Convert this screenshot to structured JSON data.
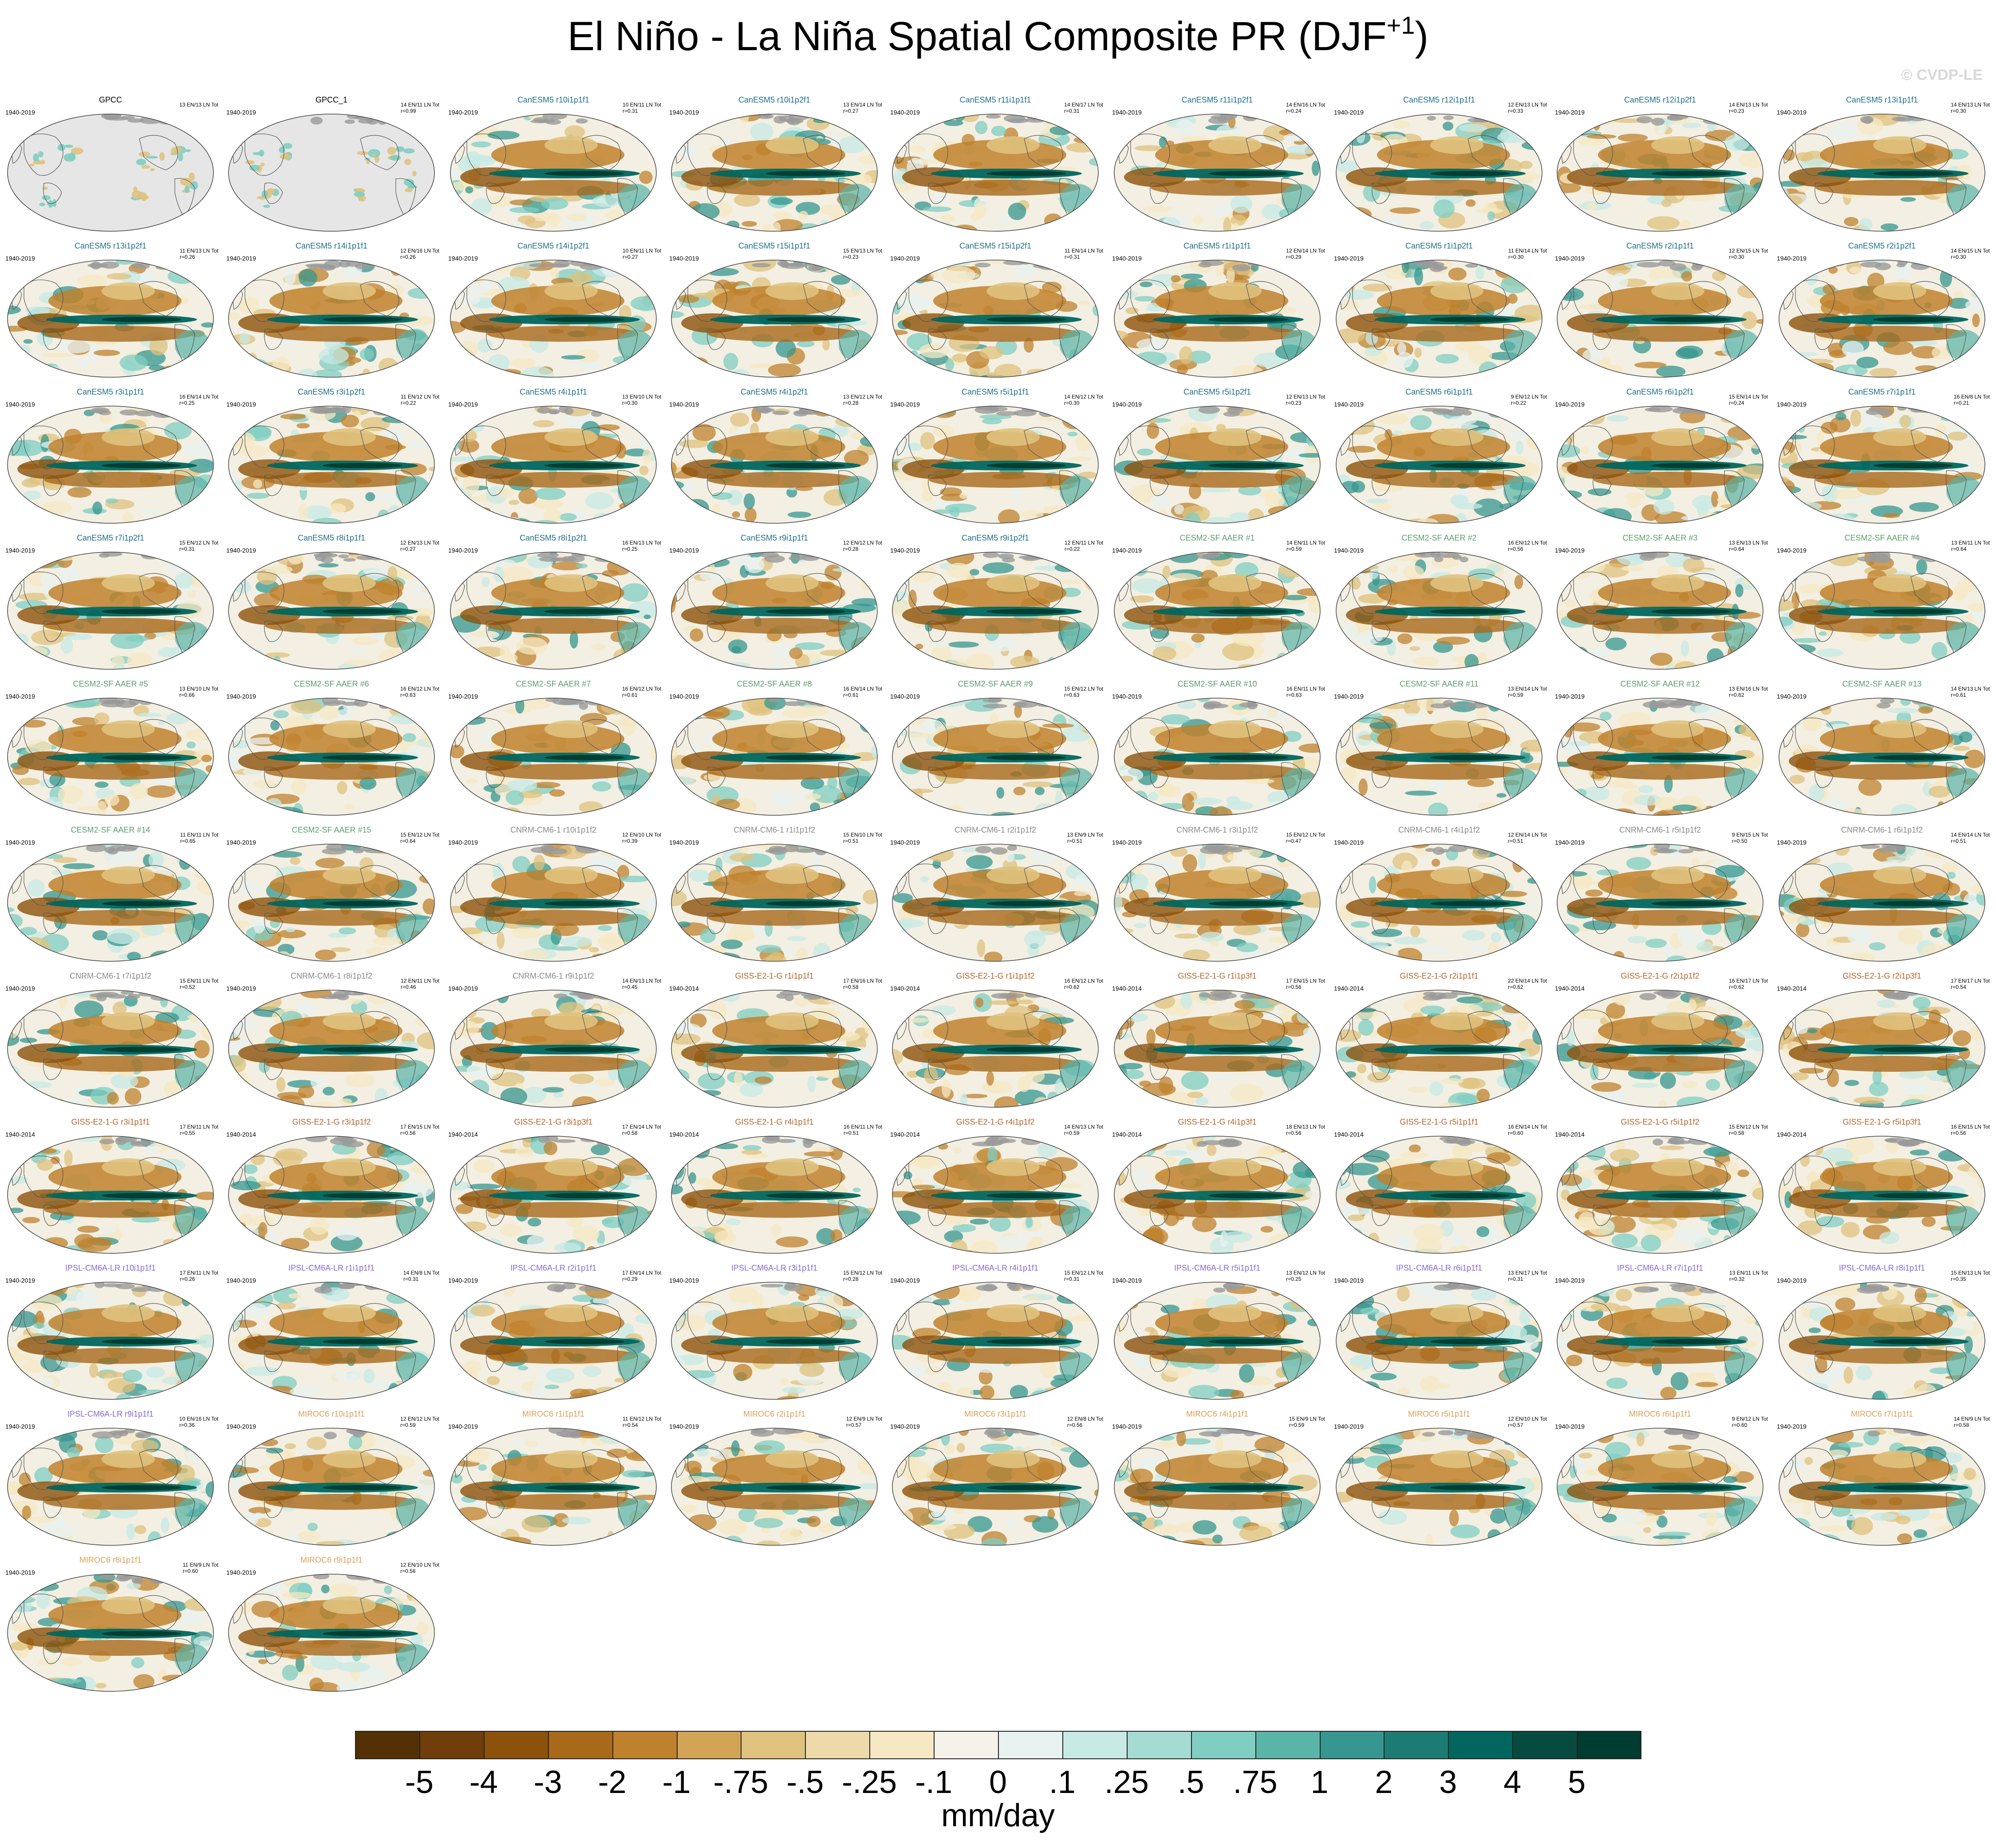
{
  "title": "El Niño - La Niña Spatial Composite PR (DJF",
  "title_superscript": "+1",
  "title_close": ")",
  "watermark": "© CVDP-LE",
  "colors": {
    "gpcc": "#000000",
    "CanESM5": "#1f6f8b",
    "CESM2": "#5e9e6e",
    "CNRM": "#8a8a8a",
    "GISS": "#b5652f",
    "IPSL": "#8a6ad0",
    "MIROC6": "#d9a05b"
  },
  "chart_data": {
    "type": "heatmap",
    "title": "El Niño - La Niña Spatial Composite PR (DJF+1)",
    "projection": "Robinson (Pacific-centered)",
    "units": "mm/day",
    "colorbar": {
      "ticks": [
        "-5",
        "-4",
        "-3",
        "-2",
        "-1",
        "-.75",
        "-.5",
        "-.25",
        "-.1",
        "0",
        ".1",
        ".25",
        ".5",
        ".75",
        "1",
        "2",
        "3",
        "4",
        "5"
      ],
      "colors": [
        "#543005",
        "#6f3e0a",
        "#8c510a",
        "#a8691b",
        "#bf812d",
        "#d2a556",
        "#dfc27d",
        "#eed9a8",
        "#f6e8c3",
        "#f5f2ea",
        "#e8f2f0",
        "#c7eae5",
        "#a4dbd2",
        "#80cdc1",
        "#5ab4a8",
        "#35978f",
        "#1c7b72",
        "#01665e",
        "#074b40",
        "#003c30"
      ]
    },
    "panels": [
      {
        "name": "GPCC",
        "group": "gpcc",
        "years": "1940-2019",
        "stats": "13 EN/13 LN Tot",
        "r": "",
        "obs": true
      },
      {
        "name": "GPCC_1",
        "group": "gpcc",
        "years": "1940-2019",
        "stats": "14 EN/11 LN Tot",
        "r": "r=0.99",
        "obs": true
      },
      {
        "name": "CanESM5 r10i1p1f1",
        "group": "CanESM5",
        "years": "1940-2019",
        "stats": "10 EN/11 LN Tot",
        "r": "r=0.31"
      },
      {
        "name": "CanESM5 r10i1p2f1",
        "group": "CanESM5",
        "years": "1940-2019",
        "stats": "13 EN/14 LN Tot",
        "r": "r=0.27"
      },
      {
        "name": "CanESM5 r11i1p1f1",
        "group": "CanESM5",
        "years": "1940-2019",
        "stats": "14 EN/17 LN Tot",
        "r": "r=0.31"
      },
      {
        "name": "CanESM5 r11i1p2f1",
        "group": "CanESM5",
        "years": "1940-2019",
        "stats": "14 EN/16 LN Tot",
        "r": "r=0.24"
      },
      {
        "name": "CanESM5 r12i1p1f1",
        "group": "CanESM5",
        "years": "1940-2019",
        "stats": "12 EN/13 LN Tot",
        "r": "r=0.33"
      },
      {
        "name": "CanESM5 r12i1p2f1",
        "group": "CanESM5",
        "years": "1940-2019",
        "stats": "14 EN/13 LN Tot",
        "r": "r=0.23"
      },
      {
        "name": "CanESM5 r13i1p1f1",
        "group": "CanESM5",
        "years": "1940-2019",
        "stats": "14 EN/13 LN Tot",
        "r": "r=0.30"
      },
      {
        "name": "CanESM5 r13i1p2f1",
        "group": "CanESM5",
        "years": "1940-2019",
        "stats": "11 EN/13 LN Tot",
        "r": "r=0.26"
      },
      {
        "name": "CanESM5 r14i1p1f1",
        "group": "CanESM5",
        "years": "1940-2019",
        "stats": "12 EN/16 LN Tot",
        "r": "r=0.26"
      },
      {
        "name": "CanESM5 r14i1p2f1",
        "group": "CanESM5",
        "years": "1940-2019",
        "stats": "10 EN/11 LN Tot",
        "r": "r=0.27"
      },
      {
        "name": "CanESM5 r15i1p1f1",
        "group": "CanESM5",
        "years": "1940-2019",
        "stats": "15 EN/13 LN Tot",
        "r": "r=0.23"
      },
      {
        "name": "CanESM5 r15i1p2f1",
        "group": "CanESM5",
        "years": "1940-2019",
        "stats": "11 EN/14 LN Tot",
        "r": "r=0.31"
      },
      {
        "name": "CanESM5 r1i1p1f1",
        "group": "CanESM5",
        "years": "1940-2019",
        "stats": "12 EN/14 LN Tot",
        "r": "r=0.29"
      },
      {
        "name": "CanESM5 r1i1p2f1",
        "group": "CanESM5",
        "years": "1940-2019",
        "stats": "11 EN/14 LN Tot",
        "r": "r=0.30"
      },
      {
        "name": "CanESM5 r2i1p1f1",
        "group": "CanESM5",
        "years": "1940-2019",
        "stats": "12 EN/15 LN Tot",
        "r": "r=0.30"
      },
      {
        "name": "CanESM5 r2i1p2f1",
        "group": "CanESM5",
        "years": "1940-2019",
        "stats": "14 EN/15 LN Tot",
        "r": "r=0.30"
      },
      {
        "name": "CanESM5 r3i1p1f1",
        "group": "CanESM5",
        "years": "1940-2019",
        "stats": "16 EN/14 LN Tot",
        "r": "r=0.25"
      },
      {
        "name": "CanESM5 r3i1p2f1",
        "group": "CanESM5",
        "years": "1940-2019",
        "stats": "11 EN/12 LN Tot",
        "r": "r=0.22"
      },
      {
        "name": "CanESM5 r4i1p1f1",
        "group": "CanESM5",
        "years": "1940-2019",
        "stats": "13 EN/10 LN Tot",
        "r": "r=0.30"
      },
      {
        "name": "CanESM5 r4i1p2f1",
        "group": "CanESM5",
        "years": "1940-2019",
        "stats": "13 EN/12 LN Tot",
        "r": "r=0.28"
      },
      {
        "name": "CanESM5 r5i1p1f1",
        "group": "CanESM5",
        "years": "1940-2019",
        "stats": "14 EN/12 LN Tot",
        "r": "r=0.30"
      },
      {
        "name": "CanESM5 r5i1p2f1",
        "group": "CanESM5",
        "years": "1940-2019",
        "stats": "12 EN/13 LN Tot",
        "r": "r=0.23"
      },
      {
        "name": "CanESM5 r6i1p1f1",
        "group": "CanESM5",
        "years": "1940-2019",
        "stats": "9 EN/12 LN Tot",
        "r": "r=0.22"
      },
      {
        "name": "CanESM5 r6i1p2f1",
        "group": "CanESM5",
        "years": "1940-2019",
        "stats": "15 EN/14 LN Tot",
        "r": "r=0.24"
      },
      {
        "name": "CanESM5 r7i1p1f1",
        "group": "CanESM5",
        "years": "1940-2019",
        "stats": "16 EN/8 LN Tot",
        "r": "r=0.21"
      },
      {
        "name": "CanESM5 r7i1p2f1",
        "group": "CanESM5",
        "years": "1940-2019",
        "stats": "15 EN/12 LN Tot",
        "r": "r=0.31"
      },
      {
        "name": "CanESM5 r8i1p1f1",
        "group": "CanESM5",
        "years": "1940-2019",
        "stats": "12 EN/13 LN Tot",
        "r": "r=0.27"
      },
      {
        "name": "CanESM5 r8i1p2f1",
        "group": "CanESM5",
        "years": "1940-2019",
        "stats": "16 EN/13 LN Tot",
        "r": "r=0.25"
      },
      {
        "name": "CanESM5 r9i1p1f1",
        "group": "CanESM5",
        "years": "1940-2019",
        "stats": "12 EN/12 LN Tot",
        "r": "r=0.28"
      },
      {
        "name": "CanESM5 r9i1p2f1",
        "group": "CanESM5",
        "years": "1940-2019",
        "stats": "12 EN/11 LN Tot",
        "r": "r=0.22"
      },
      {
        "name": "CESM2-SF AAER #1",
        "group": "CESM2",
        "years": "1940-2019",
        "stats": "14 EN/11 LN Tot",
        "r": "r=0.59"
      },
      {
        "name": "CESM2-SF AAER #2",
        "group": "CESM2",
        "years": "1940-2019",
        "stats": "16 EN/12 LN Tot",
        "r": "r=0.56"
      },
      {
        "name": "CESM2-SF AAER #3",
        "group": "CESM2",
        "years": "1940-2019",
        "stats": "13 EN/13 LN Tot",
        "r": "r=0.64"
      },
      {
        "name": "CESM2-SF AAER #4",
        "group": "CESM2",
        "years": "1940-2019",
        "stats": "13 EN/11 LN Tot",
        "r": "r=0.64"
      },
      {
        "name": "CESM2-SF AAER #5",
        "group": "CESM2",
        "years": "1940-2019",
        "stats": "13 EN/10 LN Tot",
        "r": "r=0.66"
      },
      {
        "name": "CESM2-SF AAER #6",
        "group": "CESM2",
        "years": "1940-2019",
        "stats": "16 EN/12 LN Tot",
        "r": "r=0.63"
      },
      {
        "name": "CESM2-SF AAER #7",
        "group": "CESM2",
        "years": "1940-2019",
        "stats": "16 EN/12 LN Tot",
        "r": "r=0.61"
      },
      {
        "name": "CESM2-SF AAER #8",
        "group": "CESM2",
        "years": "1940-2019",
        "stats": "16 EN/14 LN Tot",
        "r": "r=0.61"
      },
      {
        "name": "CESM2-SF AAER #9",
        "group": "CESM2",
        "years": "1940-2019",
        "stats": "15 EN/12 LN Tot",
        "r": "r=0.63"
      },
      {
        "name": "CESM2-SF AAER #10",
        "group": "CESM2",
        "years": "1940-2019",
        "stats": "16 EN/11 LN Tot",
        "r": "r=0.63"
      },
      {
        "name": "CESM2-SF AAER #11",
        "group": "CESM2",
        "years": "1940-2019",
        "stats": "13 EN/14 LN Tot",
        "r": "r=0.59"
      },
      {
        "name": "CESM2-SF AAER #12",
        "group": "CESM2",
        "years": "1940-2019",
        "stats": "13 EN/16 LN Tot",
        "r": "r=0.62"
      },
      {
        "name": "CESM2-SF AAER #13",
        "group": "CESM2",
        "years": "1940-2019",
        "stats": "14 EN/13 LN Tot",
        "r": "r=0.61"
      },
      {
        "name": "CESM2-SF AAER #14",
        "group": "CESM2",
        "years": "1940-2019",
        "stats": "11 EN/11 LN Tot",
        "r": "r=0.65"
      },
      {
        "name": "CESM2-SF AAER #15",
        "group": "CESM2",
        "years": "1940-2019",
        "stats": "15 EN/12 LN Tot",
        "r": "r=0.64"
      },
      {
        "name": "CNRM-CM6-1 r10i1p1f2",
        "group": "CNRM",
        "years": "1940-2019",
        "stats": "12 EN/10 LN Tot",
        "r": "r=0.39"
      },
      {
        "name": "CNRM-CM6-1 r1i1p1f2",
        "group": "CNRM",
        "years": "1940-2019",
        "stats": "15 EN/10 LN Tot",
        "r": "r=0.51"
      },
      {
        "name": "CNRM-CM6-1 r2i1p1f2",
        "group": "CNRM",
        "years": "1940-2019",
        "stats": "13 EN/9 LN Tot",
        "r": "r=0.51"
      },
      {
        "name": "CNRM-CM6-1 r3i1p1f2",
        "group": "CNRM",
        "years": "1940-2019",
        "stats": "15 EN/12 LN Tot",
        "r": "r=0.47"
      },
      {
        "name": "CNRM-CM6-1 r4i1p1f2",
        "group": "CNRM",
        "years": "1940-2019",
        "stats": "12 EN/14 LN Tot",
        "r": "r=0.51"
      },
      {
        "name": "CNRM-CM6-1 r5i1p1f2",
        "group": "CNRM",
        "years": "1940-2019",
        "stats": "9 EN/15 LN Tot",
        "r": "r=0.50"
      },
      {
        "name": "CNRM-CM6-1 r6i1p1f2",
        "group": "CNRM",
        "years": "1940-2019",
        "stats": "14 EN/14 LN Tot",
        "r": "r=0.51"
      },
      {
        "name": "CNRM-CM6-1 r7i1p1f2",
        "group": "CNRM",
        "years": "1940-2019",
        "stats": "15 EN/11 LN Tot",
        "r": "r=0.52"
      },
      {
        "name": "CNRM-CM6-1 r8i1p1f2",
        "group": "CNRM",
        "years": "1940-2019",
        "stats": "12 EN/11 LN Tot",
        "r": "r=0.46"
      },
      {
        "name": "CNRM-CM6-1 r9i1p1f2",
        "group": "CNRM",
        "years": "1940-2019",
        "stats": "14 EN/13 LN Tot",
        "r": "r=0.45"
      },
      {
        "name": "GISS-E2-1-G r1i1p1f1",
        "group": "GISS",
        "years": "1940-2014",
        "stats": "17 EN/16 LN Tot",
        "r": "r=0.58"
      },
      {
        "name": "GISS-E2-1-G r1i1p1f2",
        "group": "GISS",
        "years": "1940-2014",
        "stats": "16 EN/12 LN Tot",
        "r": "r=0.62"
      },
      {
        "name": "GISS-E2-1-G r1i1p3f1",
        "group": "GISS",
        "years": "1940-2014",
        "stats": "17 EN/15 LN Tot",
        "r": "r=0.56"
      },
      {
        "name": "GISS-E2-1-G r2i1p1f1",
        "group": "GISS",
        "years": "1940-2014",
        "stats": "22 EN/14 LN Tot",
        "r": "r=0.62"
      },
      {
        "name": "GISS-E2-1-G r2i1p1f2",
        "group": "GISS",
        "years": "1940-2014",
        "stats": "16 EN/17 LN Tot",
        "r": "r=0.62"
      },
      {
        "name": "GISS-E2-1-G r2i1p3f1",
        "group": "GISS",
        "years": "1940-2014",
        "stats": "17 EN/17 LN Tot",
        "r": "r=0.54"
      },
      {
        "name": "GISS-E2-1-G r3i1p1f1",
        "group": "GISS",
        "years": "1940-2014",
        "stats": "17 EN/11 LN Tot",
        "r": "r=0.55"
      },
      {
        "name": "GISS-E2-1-G r3i1p1f2",
        "group": "GISS",
        "years": "1940-2014",
        "stats": "17 EN/15 LN Tot",
        "r": "r=0.56"
      },
      {
        "name": "GISS-E2-1-G r3i1p3f1",
        "group": "GISS",
        "years": "1940-2014",
        "stats": "17 EN/14 LN Tot",
        "r": "r=0.58"
      },
      {
        "name": "GISS-E2-1-G r4i1p1f1",
        "group": "GISS",
        "years": "1940-2014",
        "stats": "16 EN/11 LN Tot",
        "r": "r=0.51"
      },
      {
        "name": "GISS-E2-1-G r4i1p1f2",
        "group": "GISS",
        "years": "1940-2014",
        "stats": "14 EN/13 LN Tot",
        "r": "r=0.59"
      },
      {
        "name": "GISS-E2-1-G r4i1p3f1",
        "group": "GISS",
        "years": "1940-2014",
        "stats": "18 EN/13 LN Tot",
        "r": "r=0.56"
      },
      {
        "name": "GISS-E2-1-G r5i1p1f1",
        "group": "GISS",
        "years": "1940-2014",
        "stats": "16 EN/14 LN Tot",
        "r": "r=0.60"
      },
      {
        "name": "GISS-E2-1-G r5i1p1f2",
        "group": "GISS",
        "years": "1940-2014",
        "stats": "15 EN/12 LN Tot",
        "r": "r=0.58"
      },
      {
        "name": "GISS-E2-1-G r5i1p3f1",
        "group": "GISS",
        "years": "1940-2014",
        "stats": "16 EN/15 LN Tot",
        "r": "r=0.56"
      },
      {
        "name": "IPSL-CM6A-LR r10i1p1f1",
        "group": "IPSL",
        "years": "1940-2019",
        "stats": "17 EN/11 LN Tot",
        "r": "r=0.26"
      },
      {
        "name": "IPSL-CM6A-LR r1i1p1f1",
        "group": "IPSL",
        "years": "1940-2019",
        "stats": "14 EN/8 LN Tot",
        "r": "r=0.31"
      },
      {
        "name": "IPSL-CM6A-LR r2i1p1f1",
        "group": "IPSL",
        "years": "1940-2019",
        "stats": "17 EN/14 LN Tot",
        "r": "r=0.29"
      },
      {
        "name": "IPSL-CM6A-LR r3i1p1f1",
        "group": "IPSL",
        "years": "1940-2019",
        "stats": "15 EN/12 LN Tot",
        "r": "r=0.28"
      },
      {
        "name": "IPSL-CM6A-LR r4i1p1f1",
        "group": "IPSL",
        "years": "1940-2019",
        "stats": "15 EN/12 LN Tot",
        "r": "r=0.31"
      },
      {
        "name": "IPSL-CM6A-LR r5i1p1f1",
        "group": "IPSL",
        "years": "1940-2019",
        "stats": "13 EN/12 LN Tot",
        "r": "r=0.25"
      },
      {
        "name": "IPSL-CM6A-LR r6i1p1f1",
        "group": "IPSL",
        "years": "1940-2019",
        "stats": "13 EN/17 LN Tot",
        "r": "r=0.31"
      },
      {
        "name": "IPSL-CM6A-LR r7i1p1f1",
        "group": "IPSL",
        "years": "1940-2019",
        "stats": "13 EN/11 LN Tot",
        "r": "r=0.32"
      },
      {
        "name": "IPSL-CM6A-LR r8i1p1f1",
        "group": "IPSL",
        "years": "1940-2019",
        "stats": "15 EN/13 LN Tot",
        "r": "r=0.35"
      },
      {
        "name": "IPSL-CM6A-LR r9i1p1f1",
        "group": "IPSL",
        "years": "1940-2019",
        "stats": "10 EN/16 LN Tot",
        "r": "r=0.36"
      },
      {
        "name": "MIROC6 r10i1p1f1",
        "group": "MIROC6",
        "years": "1940-2019",
        "stats": "12 EN/12 LN Tot",
        "r": "r=0.59"
      },
      {
        "name": "MIROC6 r1i1p1f1",
        "group": "MIROC6",
        "years": "1940-2019",
        "stats": "11 EN/12 LN Tot",
        "r": "r=0.54"
      },
      {
        "name": "MIROC6 r2i1p1f1",
        "group": "MIROC6",
        "years": "1940-2019",
        "stats": "12 EN/9 LN Tot",
        "r": "r=0.57"
      },
      {
        "name": "MIROC6 r3i1p1f1",
        "group": "MIROC6",
        "years": "1940-2019",
        "stats": "12 EN/8 LN Tot",
        "r": "r=0.56"
      },
      {
        "name": "MIROC6 r4i1p1f1",
        "group": "MIROC6",
        "years": "1940-2019",
        "stats": "15 EN/9 LN Tot",
        "r": "r=0.59"
      },
      {
        "name": "MIROC6 r5i1p1f1",
        "group": "MIROC6",
        "years": "1940-2019",
        "stats": "12 EN/10 LN Tot",
        "r": "r=0.57"
      },
      {
        "name": "MIROC6 r6i1p1f1",
        "group": "MIROC6",
        "years": "1940-2019",
        "stats": "9 EN/12 LN Tot",
        "r": "r=0.60"
      },
      {
        "name": "MIROC6 r7i1p1f1",
        "group": "MIROC6",
        "years": "1940-2019",
        "stats": "14 EN/9 LN Tot",
        "r": "r=0.58"
      },
      {
        "name": "MIROC6 r8i1p1f1",
        "group": "MIROC6",
        "years": "1940-2019",
        "stats": "11 EN/9 LN Tot",
        "r": "r=0.60"
      },
      {
        "name": "MIROC6 r9i1p1f1",
        "group": "MIROC6",
        "years": "1940-2019",
        "stats": "12 EN/10 LN Tot",
        "r": "r=0.56"
      }
    ]
  }
}
